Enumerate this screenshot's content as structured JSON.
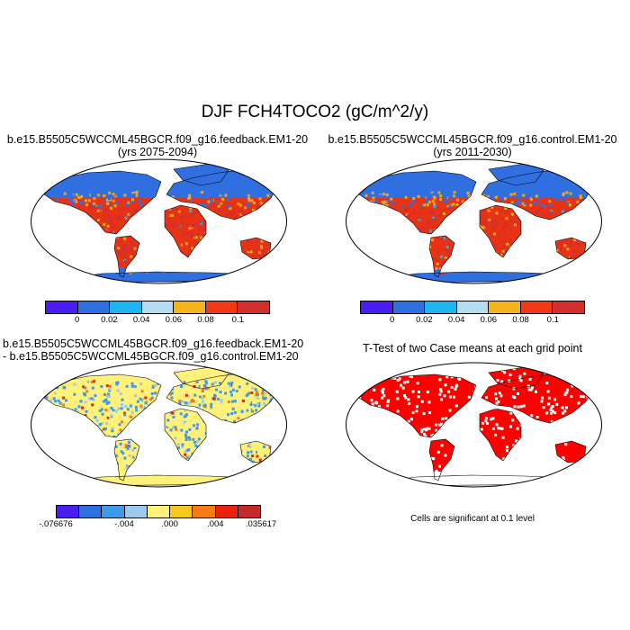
{
  "title": "DJF FCH4TOCO2 (gC/m^2/y)",
  "panels": [
    {
      "title_line1": "b.e15.B5505C5WCCML45BGCR.f09_g16.feedback.EM1-20",
      "title_line2": "(yrs 2075-2094)"
    },
    {
      "title_line1": "b.e15.B5505C5WCCML45BGCR.f09_g16.control.EM1-20",
      "title_line2": "(yrs 2011-2030)"
    },
    {
      "title_line1": "b.e15.B5505C5WCCML45BGCR.f09_g16.feedback.EM1-20",
      "title_line2": "- b.e15.B5505C5WCCML45BGCR.f09_g16.control.EM1-20"
    },
    {
      "title_line1": "T-Test of two Case means at each grid point"
    }
  ],
  "colorbars": {
    "absolute": {
      "colors": [
        "#4a1ef0",
        "#2f6fe0",
        "#1fb4f0",
        "#b7dcef",
        "#f5b41c",
        "#f03a16",
        "#d22f2f"
      ],
      "labels": [
        "0",
        "0.02",
        "0.04",
        "0.06",
        "0.08",
        "0.1"
      ]
    },
    "difference": {
      "colors": [
        "#4a1ef0",
        "#2f6fe0",
        "#3f9be8",
        "#9cc9ec",
        "#fff17a",
        "#f7c91c",
        "#f57c12",
        "#e8220f",
        "#c8282a"
      ],
      "labels": [
        "-.076676",
        "-.004",
        ".000",
        ".004",
        ".035617"
      ]
    }
  },
  "footnote": "Cells are significant at 0.1 level",
  "palette": {
    "ocean": "#ffffff",
    "cold_land": "#2f6fe0",
    "warm_land": "#e83214",
    "mid_land": "#f5a41c",
    "diff_neutral": "#fff17a",
    "diff_negative": "#3f9be8",
    "diff_positive": "#e8220f",
    "significant": "#ff0000"
  }
}
